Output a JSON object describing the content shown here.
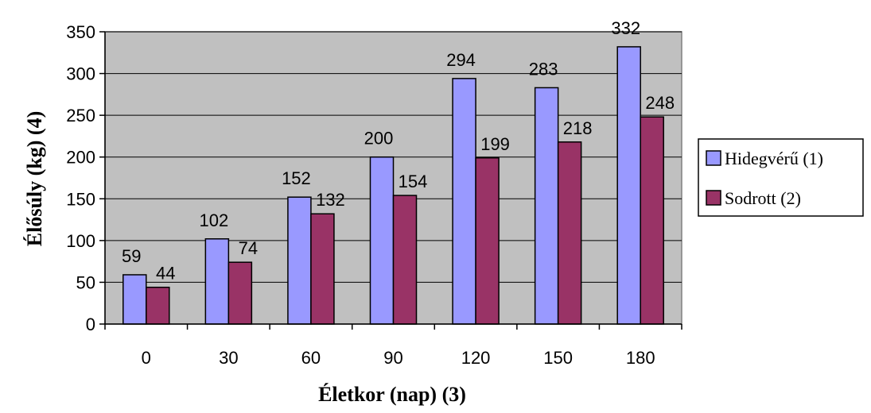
{
  "chart_data": {
    "type": "bar",
    "title": "",
    "xlabel": "Életkor (nap) (3)",
    "ylabel": "Élősúly (kg) (4)",
    "categories": [
      "0",
      "30",
      "60",
      "90",
      "120",
      "150",
      "180"
    ],
    "ylim": [
      0,
      350
    ],
    "yticks": [
      0,
      50,
      100,
      150,
      200,
      250,
      300,
      350
    ],
    "grid": true,
    "legend_position": "right",
    "series": [
      {
        "name": "Hidegvérű (1)",
        "color": "#9999ff",
        "values": [
          59,
          102,
          152,
          200,
          294,
          283,
          332
        ]
      },
      {
        "name": "Sodrott (2)",
        "color": "#993366",
        "values": [
          44,
          74,
          132,
          154,
          199,
          218,
          248
        ]
      }
    ],
    "plot_background": "#c0c0c0",
    "data_labels": true
  }
}
